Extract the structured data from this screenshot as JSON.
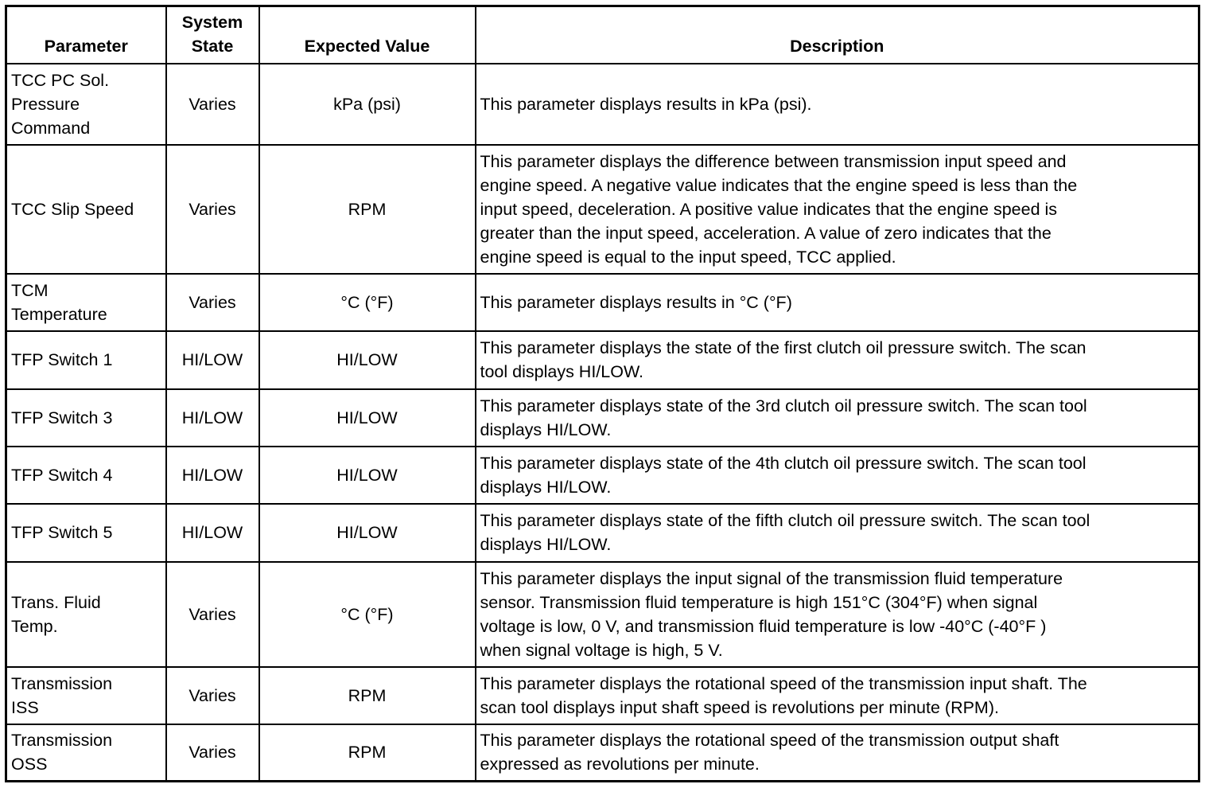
{
  "headers": [
    [
      "Parameter"
    ],
    [
      "System",
      "State"
    ],
    [
      "Expected Value"
    ],
    [
      "Description"
    ]
  ],
  "rows": [
    {
      "parameter": [
        "TCC PC Sol.",
        "Pressure",
        "Command"
      ],
      "state": "Varies",
      "expected": "kPa (psi)",
      "description": [
        "This parameter displays results in kPa (psi)."
      ]
    },
    {
      "parameter": [
        "TCC Slip Speed"
      ],
      "state": "Varies",
      "expected": "RPM",
      "description": [
        "This parameter displays the difference between transmission input speed and",
        "engine speed. A negative value indicates that the engine speed is less than the",
        "input speed, deceleration. A positive value indicates that the engine speed is",
        "greater than the input speed, acceleration. A value of zero indicates that the",
        "engine speed is equal to the input speed, TCC applied."
      ]
    },
    {
      "parameter": [
        "TCM",
        "Temperature"
      ],
      "state": "Varies",
      "expected": "°C (°F)",
      "description": [
        "This parameter displays results in °C (°F)"
      ]
    },
    {
      "parameter": [
        "TFP Switch 1"
      ],
      "state": "HI/LOW",
      "expected": "HI/LOW",
      "description": [
        "This parameter displays the state of the first clutch oil pressure switch. The scan",
        "tool displays HI/LOW."
      ]
    },
    {
      "parameter": [
        "TFP Switch 3"
      ],
      "state": "HI/LOW",
      "expected": "HI/LOW",
      "description": [
        "This parameter displays state of the 3rd clutch oil pressure switch. The scan tool",
        "displays HI/LOW."
      ]
    },
    {
      "parameter": [
        "TFP Switch 4"
      ],
      "state": "HI/LOW",
      "expected": "HI/LOW",
      "description": [
        "This parameter displays state of the 4th clutch oil pressure switch. The scan tool",
        "displays HI/LOW."
      ]
    },
    {
      "parameter": [
        "TFP Switch 5"
      ],
      "state": "HI/LOW",
      "expected": "HI/LOW",
      "description": [
        "This parameter displays state of the fifth clutch oil pressure switch. The scan tool",
        "displays HI/LOW."
      ]
    },
    {
      "parameter": [
        "Trans. Fluid",
        "Temp."
      ],
      "state": "Varies",
      "expected": "°C (°F)",
      "description": [
        "This parameter displays the input signal of the transmission fluid temperature",
        "sensor. Transmission fluid temperature is high 151°C (304°F) when signal",
        "voltage is low, 0 V, and transmission fluid temperature is low -40°C (-40°F )",
        "when signal voltage is high, 5 V."
      ]
    },
    {
      "parameter": [
        "Transmission",
        "ISS"
      ],
      "state": "Varies",
      "expected": "RPM",
      "description": [
        "This parameter displays the rotational speed of the transmission input shaft. The",
        "scan tool displays input shaft speed is revolutions per minute (RPM)."
      ]
    },
    {
      "parameter": [
        "Transmission",
        "OSS"
      ],
      "state": "Varies",
      "expected": "RPM",
      "description": [
        "This parameter displays the rotational speed of the transmission output shaft",
        "expressed as revolutions per minute."
      ]
    }
  ]
}
